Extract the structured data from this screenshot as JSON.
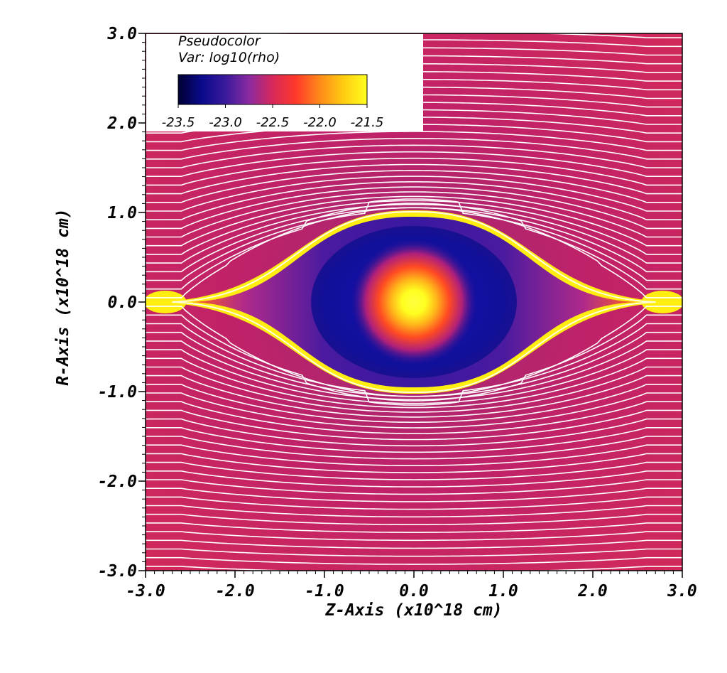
{
  "chart_data": {
    "type": "heatmap",
    "title": "",
    "xlabel": "Z-Axis (x10^18 cm)",
    "ylabel": "R-Axis (x10^18 cm)",
    "xlim": [
      -3.0,
      3.0
    ],
    "ylim": [
      -3.0,
      3.0
    ],
    "x_ticks": [
      {
        "value": -3.0,
        "label": "-3.0"
      },
      {
        "value": -2.0,
        "label": "-2.0"
      },
      {
        "value": -1.0,
        "label": "-1.0"
      },
      {
        "value": 0.0,
        "label": "0.0"
      },
      {
        "value": 1.0,
        "label": "1.0"
      },
      {
        "value": 2.0,
        "label": "2.0"
      },
      {
        "value": 3.0,
        "label": "3.0"
      }
    ],
    "y_ticks": [
      {
        "value": 3.0,
        "label": "3.0"
      },
      {
        "value": 2.0,
        "label": "2.0"
      },
      {
        "value": 1.0,
        "label": "1.0"
      },
      {
        "value": 0.0,
        "label": "0.0"
      },
      {
        "value": -1.0,
        "label": "-1.0"
      },
      {
        "value": -2.0,
        "label": "-2.0"
      },
      {
        "value": -3.0,
        "label": "-3.0"
      }
    ],
    "legend": {
      "title": "Pseudocolor",
      "variable": "Var: log10(rho)",
      "placement": "top-left",
      "range": [
        -23.5,
        -21.5
      ],
      "ticks": [
        {
          "value": -23.5,
          "label": "-23.5"
        },
        {
          "value": -23.0,
          "label": "-23.0"
        },
        {
          "value": -22.5,
          "label": "-22.5"
        },
        {
          "value": -22.0,
          "label": "-22.0"
        },
        {
          "value": -21.5,
          "label": "-21.5"
        }
      ],
      "colormap": [
        "#000033",
        "#0a0a8c",
        "#3a1a9c",
        "#8a2aa0",
        "#d8285a",
        "#ff3a2a",
        "#ff8a1a",
        "#ffcc10",
        "#ffff20"
      ]
    },
    "field": {
      "ambient_value": -22.3,
      "shell_radius_z": 2.4,
      "shell_radius_r": 1.0,
      "shell_value": -21.5,
      "cavity_value": -23.0,
      "core_value": -21.5
    },
    "streamline_count": 62,
    "streamline_color": "#ffffff"
  }
}
